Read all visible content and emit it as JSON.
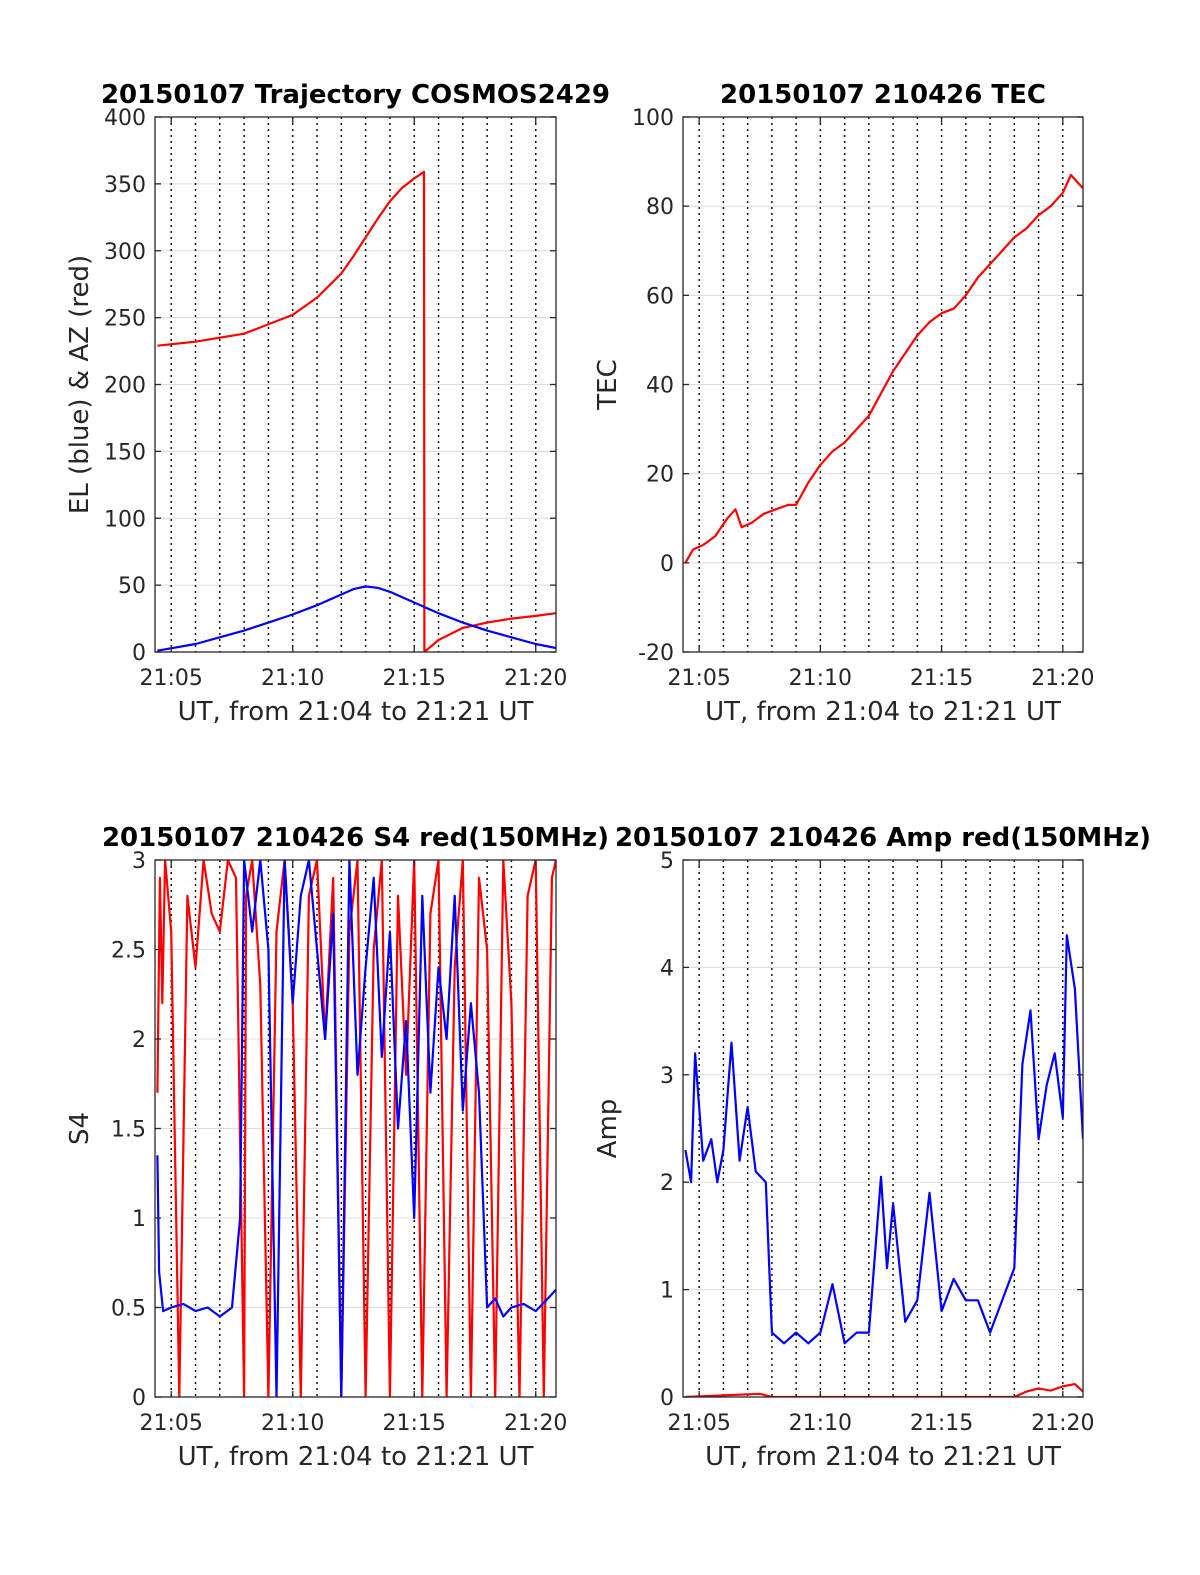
{
  "chart_data": [
    {
      "type": "line",
      "title": "20150107 Trajectory COSMOS2429",
      "xlabel": "UT, from 21:04 to 21:21 UT",
      "ylabel": "EL (blue) & AZ (red)",
      "x_tick_labels": [
        "21:05",
        "21:10",
        "21:15",
        "21:20"
      ],
      "y_tick_labels": [
        "0",
        "50",
        "100",
        "150",
        "200",
        "250",
        "300",
        "350",
        "400"
      ],
      "xlim": [
        "21:04:20",
        "21:20:50"
      ],
      "ylim": [
        0,
        400
      ],
      "grid": "on",
      "series": [
        {
          "color": "#ff0000",
          "x": [
            "21:04:26",
            "21:06:00",
            "21:08:00",
            "21:10:00",
            "21:11:00",
            "21:12:00",
            "21:12:30",
            "21:13:00",
            "21:13:30",
            "21:14:00",
            "21:14:30",
            "21:15:00",
            "21:15:24",
            "21:15:25",
            "21:16:00",
            "21:17:00",
            "21:18:00",
            "21:19:00",
            "21:20:00",
            "21:20:50"
          ],
          "y": [
            229,
            232,
            238,
            252,
            265,
            283,
            296,
            310,
            324,
            337,
            347,
            354,
            359,
            0,
            9,
            18,
            22,
            25,
            27,
            29
          ]
        },
        {
          "color": "#0000ff",
          "x": [
            "21:04:26",
            "21:06:00",
            "21:08:00",
            "21:10:00",
            "21:11:00",
            "21:12:00",
            "21:12:30",
            "21:13:00",
            "21:13:30",
            "21:14:00",
            "21:15:00",
            "21:16:00",
            "21:17:00",
            "21:18:00",
            "21:19:00",
            "21:20:00",
            "21:20:50"
          ],
          "y": [
            1,
            6,
            16,
            28,
            35,
            43,
            47,
            49,
            48,
            45,
            37,
            29,
            22,
            16,
            11,
            6,
            3
          ]
        }
      ]
    },
    {
      "type": "line",
      "title": "20150107 210426 TEC",
      "xlabel": "UT, from 21:04 to 21:21 UT",
      "ylabel": "TEC",
      "x_tick_labels": [
        "21:05",
        "21:10",
        "21:15",
        "21:20"
      ],
      "y_tick_labels": [
        "-20",
        "0",
        "20",
        "40",
        "60",
        "80",
        "100"
      ],
      "xlim": [
        "21:04:20",
        "21:20:50"
      ],
      "ylim": [
        -20,
        100
      ],
      "grid": "on",
      "series": [
        {
          "color": "#ff0000",
          "x": [
            "21:04:26",
            "21:04:45",
            "21:05:10",
            "21:05:40",
            "21:06:10",
            "21:06:30",
            "21:06:45",
            "21:07:10",
            "21:07:40",
            "21:08:10",
            "21:08:40",
            "21:09:00",
            "21:09:30",
            "21:10:00",
            "21:10:30",
            "21:11:00",
            "21:11:30",
            "21:12:00",
            "21:12:30",
            "21:13:00",
            "21:13:30",
            "21:14:00",
            "21:14:30",
            "21:15:00",
            "21:15:30",
            "21:16:00",
            "21:16:30",
            "21:17:00",
            "21:17:30",
            "21:18:00",
            "21:18:30",
            "21:19:00",
            "21:19:30",
            "21:20:00",
            "21:20:20",
            "21:20:50"
          ],
          "y": [
            0,
            3,
            4,
            6,
            10,
            12,
            8,
            9,
            11,
            12,
            13,
            13,
            18,
            22,
            25,
            27,
            30,
            33,
            38,
            43,
            47,
            51,
            54,
            56,
            57,
            60,
            64,
            67,
            70,
            73,
            75,
            78,
            80,
            83,
            87,
            84
          ]
        }
      ]
    },
    {
      "type": "line",
      "title": "20150107 210426 S4 red(150MHz)",
      "xlabel": "UT, from 21:04 to 21:21 UT",
      "ylabel": "S4",
      "x_tick_labels": [
        "21:05",
        "21:10",
        "21:15",
        "21:20"
      ],
      "y_tick_labels": [
        "0",
        "0.5",
        "1",
        "1.5",
        "2",
        "2.5",
        "3"
      ],
      "xlim": [
        "21:04:20",
        "21:20:50"
      ],
      "ylim": [
        0,
        3
      ],
      "grid": "on",
      "series": [
        {
          "color": "#ff0000",
          "x": [
            "21:04:26",
            "21:04:32",
            "21:04:38",
            "21:04:45",
            "21:05:00",
            "21:05:20",
            "21:05:40",
            "21:06:00",
            "21:06:20",
            "21:06:40",
            "21:07:00",
            "21:07:20",
            "21:07:40",
            "21:08:00",
            "21:08:05",
            "21:08:20",
            "21:08:40",
            "21:09:00",
            "21:09:20",
            "21:09:40",
            "21:10:00",
            "21:10:20",
            "21:10:40",
            "21:11:00",
            "21:11:20",
            "21:11:40",
            "21:12:00",
            "21:12:20",
            "21:12:40",
            "21:13:00",
            "21:13:20",
            "21:13:40",
            "21:14:00",
            "21:14:20",
            "21:14:40",
            "21:15:00",
            "21:15:20",
            "21:15:40",
            "21:16:00",
            "21:16:20",
            "21:16:40",
            "21:17:00",
            "21:17:20",
            "21:17:40",
            "21:18:00",
            "21:18:20",
            "21:18:40",
            "21:19:00",
            "21:19:20",
            "21:19:40",
            "21:20:00",
            "21:20:20",
            "21:20:40",
            "21:20:50"
          ],
          "y": [
            1.7,
            2.9,
            2.2,
            3.0,
            2.6,
            0.0,
            2.8,
            2.4,
            3.0,
            2.7,
            2.6,
            3.0,
            2.9,
            0.0,
            2.8,
            3.0,
            2.3,
            0.0,
            2.6,
            3.0,
            2.2,
            0.0,
            2.8,
            3.0,
            2.0,
            2.9,
            0.0,
            2.6,
            3.0,
            0.0,
            2.5,
            3.0,
            0.0,
            2.8,
            1.8,
            3.0,
            0.0,
            2.7,
            3.0,
            0.0,
            2.4,
            3.0,
            0.0,
            2.9,
            2.5,
            0.0,
            3.0,
            2.2,
            0.0,
            2.8,
            3.0,
            0.0,
            2.9,
            3.0
          ]
        },
        {
          "color": "#0000ff",
          "x": [
            "21:04:26",
            "21:04:30",
            "21:04:40",
            "21:05:00",
            "21:05:30",
            "21:06:00",
            "21:06:30",
            "21:07:00",
            "21:07:30",
            "21:07:50",
            "21:08:00",
            "21:08:20",
            "21:08:40",
            "21:09:00",
            "21:09:20",
            "21:09:40",
            "21:10:00",
            "21:10:20",
            "21:10:40",
            "21:11:00",
            "21:11:20",
            "21:11:40",
            "21:12:00",
            "21:12:20",
            "21:12:40",
            "21:13:00",
            "21:13:20",
            "21:13:40",
            "21:14:00",
            "21:14:20",
            "21:14:40",
            "21:15:00",
            "21:15:20",
            "21:15:40",
            "21:16:00",
            "21:16:20",
            "21:16:40",
            "21:17:00",
            "21:17:20",
            "21:17:40",
            "21:18:00",
            "21:18:20",
            "21:18:40",
            "21:19:00",
            "21:19:30",
            "21:20:00",
            "21:20:30",
            "21:20:50"
          ],
          "y": [
            1.35,
            0.7,
            0.48,
            0.5,
            0.52,
            0.48,
            0.5,
            0.45,
            0.5,
            1.0,
            3.0,
            2.6,
            3.0,
            2.5,
            0.0,
            3.0,
            2.2,
            2.8,
            3.0,
            2.5,
            2.0,
            2.7,
            0.0,
            3.0,
            1.8,
            2.4,
            2.9,
            1.9,
            2.6,
            1.5,
            2.1,
            1.0,
            2.8,
            1.7,
            2.4,
            2.0,
            2.8,
            1.6,
            2.2,
            1.7,
            0.5,
            0.55,
            0.45,
            0.5,
            0.52,
            0.48,
            0.55,
            0.6
          ]
        }
      ]
    },
    {
      "type": "line",
      "title": "20150107 210426 Amp red(150MHz)",
      "xlabel": "UT, from 21:04 to 21:21 UT",
      "ylabel": "Amp",
      "x_tick_labels": [
        "21:05",
        "21:10",
        "21:15",
        "21:20"
      ],
      "y_tick_labels": [
        "0",
        "1",
        "2",
        "3",
        "4",
        "5"
      ],
      "xlim": [
        "21:04:20",
        "21:20:50"
      ],
      "ylim": [
        0,
        5
      ],
      "grid": "on",
      "series": [
        {
          "color": "#0000ff",
          "x": [
            "21:04:26",
            "21:04:40",
            "21:04:50",
            "21:05:10",
            "21:05:30",
            "21:05:45",
            "21:06:00",
            "21:06:20",
            "21:06:40",
            "21:07:00",
            "21:07:20",
            "21:07:45",
            "21:08:00",
            "21:08:30",
            "21:09:00",
            "21:09:30",
            "21:10:00",
            "21:10:30",
            "21:11:00",
            "21:11:30",
            "21:12:00",
            "21:12:30",
            "21:12:45",
            "21:13:00",
            "21:13:30",
            "21:14:00",
            "21:14:30",
            "21:15:00",
            "21:15:30",
            "21:16:00",
            "21:16:30",
            "21:17:00",
            "21:17:30",
            "21:18:00",
            "21:18:20",
            "21:18:40",
            "21:19:00",
            "21:19:20",
            "21:19:40",
            "21:20:00",
            "21:20:10",
            "21:20:30",
            "21:20:50"
          ],
          "y": [
            2.3,
            2.0,
            3.2,
            2.2,
            2.4,
            2.0,
            2.3,
            3.3,
            2.2,
            2.7,
            2.1,
            2.0,
            0.6,
            0.5,
            0.6,
            0.5,
            0.6,
            1.05,
            0.5,
            0.6,
            0.6,
            2.05,
            1.2,
            1.8,
            0.7,
            0.9,
            1.9,
            0.8,
            1.1,
            0.9,
            0.9,
            0.6,
            0.9,
            1.2,
            3.1,
            3.6,
            2.4,
            2.9,
            3.2,
            2.6,
            4.3,
            3.8,
            2.4
          ]
        },
        {
          "color": "#ff0000",
          "x": [
            "21:04:26",
            "21:07:30",
            "21:08:00",
            "21:18:00",
            "21:18:30",
            "21:19:00",
            "21:19:30",
            "21:20:00",
            "21:20:30",
            "21:20:50"
          ],
          "y": [
            0.0,
            0.03,
            0.0,
            0.0,
            0.05,
            0.08,
            0.06,
            0.1,
            0.12,
            0.05
          ]
        }
      ]
    }
  ]
}
